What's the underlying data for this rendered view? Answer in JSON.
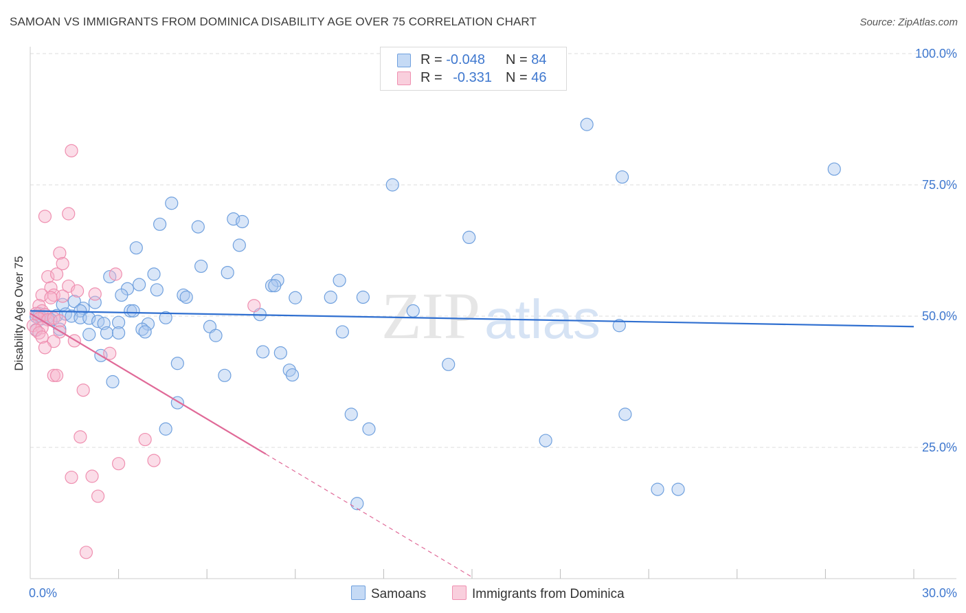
{
  "title": "SAMOAN VS IMMIGRANTS FROM DOMINICA DISABILITY AGE OVER 75 CORRELATION CHART",
  "source": "Source: ZipAtlas.com",
  "watermark": {
    "zip": "ZIP",
    "atlas": "atlas"
  },
  "legend": {
    "samoans": {
      "r_label": "R = ",
      "r_value": "-0.048",
      "n_label": "N = ",
      "n_value": "84",
      "color": "#6fa0de"
    },
    "dominica": {
      "r_label": "R = ",
      "r_value": "-0.331",
      "n_label": "N = ",
      "n_value": "46",
      "color": "#ef8fb0"
    }
  },
  "bottom_legend": {
    "samoans": "Samoans",
    "dominica": "Immigrants from Dominica"
  },
  "chart_data": {
    "type": "scatter",
    "xlabel": "",
    "ylabel": "Disability Age Over 75",
    "xlim": [
      0,
      30
    ],
    "ylim": [
      0,
      100
    ],
    "y_ticks": [
      {
        "value": 25,
        "label": "25.0%"
      },
      {
        "value": 50,
        "label": "50.0%"
      },
      {
        "value": 75,
        "label": "75.0%"
      },
      {
        "value": 100,
        "label": "100.0%"
      }
    ],
    "x_ticks": [
      {
        "value": 0,
        "label": "0.0%"
      },
      {
        "value": 30,
        "label": "30.0%"
      }
    ],
    "x_minor_ticks": [
      3,
      6,
      9,
      12,
      15,
      18,
      21,
      24,
      27,
      30
    ],
    "series": [
      {
        "name": "Samoans",
        "color": "#6fa0de",
        "trend": {
          "x0": 0,
          "y0": 51,
          "x1": 30,
          "y1": 48.0,
          "dash_from": null
        },
        "points": [
          [
            18.9,
            86.5
          ],
          [
            27.3,
            78
          ],
          [
            20.1,
            76.5
          ],
          [
            12.3,
            75
          ],
          [
            4.8,
            71.5
          ],
          [
            6.9,
            68.5
          ],
          [
            7.2,
            68
          ],
          [
            4.4,
            67.5
          ],
          [
            5.7,
            67
          ],
          [
            14.9,
            65
          ],
          [
            7.1,
            63.5
          ],
          [
            3.6,
            63
          ],
          [
            5.8,
            59.5
          ],
          [
            6.7,
            58.3
          ],
          [
            4.2,
            58
          ],
          [
            2.7,
            57.5
          ],
          [
            3.7,
            56
          ],
          [
            8.4,
            56.8
          ],
          [
            10.5,
            56.8
          ],
          [
            8.2,
            55.8
          ],
          [
            3.3,
            55.2
          ],
          [
            4.3,
            55
          ],
          [
            8.3,
            55.8
          ],
          [
            9.0,
            53.5
          ],
          [
            3.1,
            54
          ],
          [
            5.2,
            54
          ],
          [
            5.3,
            53.6
          ],
          [
            10.2,
            53.6
          ],
          [
            11.3,
            53.6
          ],
          [
            1.5,
            52.8
          ],
          [
            2.2,
            52.6
          ],
          [
            1.1,
            52.2
          ],
          [
            1.8,
            51.5
          ],
          [
            1.7,
            51
          ],
          [
            3.4,
            51
          ],
          [
            3.5,
            51
          ],
          [
            13.0,
            51
          ],
          [
            0.3,
            50.5
          ],
          [
            0.5,
            50.3
          ],
          [
            0.9,
            50.1
          ],
          [
            1.2,
            50.4
          ],
          [
            0.2,
            49.9
          ],
          [
            0.6,
            49.8
          ],
          [
            1.4,
            50
          ],
          [
            1.7,
            49.7
          ],
          [
            2.0,
            49.6
          ],
          [
            2.3,
            49
          ],
          [
            2.5,
            48.6
          ],
          [
            3.0,
            48.8
          ],
          [
            4.6,
            49.7
          ],
          [
            7.8,
            50.3
          ],
          [
            0.4,
            49.5
          ],
          [
            0.7,
            49.3
          ],
          [
            4.0,
            48.5
          ],
          [
            6.1,
            48
          ],
          [
            3.8,
            47.5
          ],
          [
            2.0,
            46.5
          ],
          [
            2.6,
            46.8
          ],
          [
            3.0,
            46.8
          ],
          [
            3.9,
            47
          ],
          [
            6.3,
            46.3
          ],
          [
            10.6,
            47
          ],
          [
            0.2,
            47.4
          ],
          [
            1.0,
            47.5
          ],
          [
            20.0,
            48.2
          ],
          [
            7.9,
            43.2
          ],
          [
            8.5,
            43
          ],
          [
            2.4,
            42.5
          ],
          [
            5.0,
            41
          ],
          [
            14.2,
            40.8
          ],
          [
            8.8,
            39.7
          ],
          [
            8.9,
            38.8
          ],
          [
            6.6,
            38.7
          ],
          [
            2.8,
            37.5
          ],
          [
            5.0,
            33.5
          ],
          [
            10.9,
            31.3
          ],
          [
            20.2,
            31.3
          ],
          [
            11.5,
            28.5
          ],
          [
            4.6,
            28.5
          ],
          [
            17.5,
            26.3
          ],
          [
            21.3,
            17
          ],
          [
            22.0,
            17
          ],
          [
            11.1,
            14.3
          ],
          [
            0.3,
            50
          ]
        ]
      },
      {
        "name": "Immigrants from Dominica",
        "color": "#ef8fb0",
        "trend": {
          "x0": 0,
          "y0": 50.5,
          "x1": 15.0,
          "y1": 0.3,
          "dash_from": 8.0
        },
        "points": [
          [
            1.4,
            81.5
          ],
          [
            0.5,
            69
          ],
          [
            1.3,
            69.5
          ],
          [
            1.0,
            62
          ],
          [
            1.1,
            60
          ],
          [
            2.9,
            58
          ],
          [
            0.6,
            57.5
          ],
          [
            0.9,
            58
          ],
          [
            1.3,
            55.7
          ],
          [
            1.6,
            54.8
          ],
          [
            0.7,
            55.4
          ],
          [
            0.4,
            54
          ],
          [
            0.8,
            54
          ],
          [
            1.1,
            53.8
          ],
          [
            0.7,
            53.5
          ],
          [
            2.2,
            54.2
          ],
          [
            7.6,
            52
          ],
          [
            0.3,
            52
          ],
          [
            0.4,
            51
          ],
          [
            0.2,
            50.5
          ],
          [
            0.5,
            50.3
          ],
          [
            0.3,
            49.5
          ],
          [
            0.6,
            49.3
          ],
          [
            0.8,
            49.6
          ],
          [
            1.0,
            49.1
          ],
          [
            0.1,
            48.2
          ],
          [
            0.4,
            47.8
          ],
          [
            0.2,
            47.3
          ],
          [
            1.0,
            47
          ],
          [
            0.3,
            46.8
          ],
          [
            0.4,
            46
          ],
          [
            0.8,
            45.2
          ],
          [
            1.5,
            45.3
          ],
          [
            0.5,
            44
          ],
          [
            2.7,
            42.9
          ],
          [
            0.8,
            38.7
          ],
          [
            0.9,
            38.7
          ],
          [
            1.8,
            35.9
          ],
          [
            1.7,
            27
          ],
          [
            3.9,
            26.5
          ],
          [
            4.2,
            22.5
          ],
          [
            3.0,
            21.9
          ],
          [
            1.4,
            19.3
          ],
          [
            2.1,
            19.5
          ],
          [
            2.3,
            15.7
          ],
          [
            1.9,
            5
          ]
        ]
      }
    ],
    "gridlines": true,
    "legend_position": "top-center"
  }
}
